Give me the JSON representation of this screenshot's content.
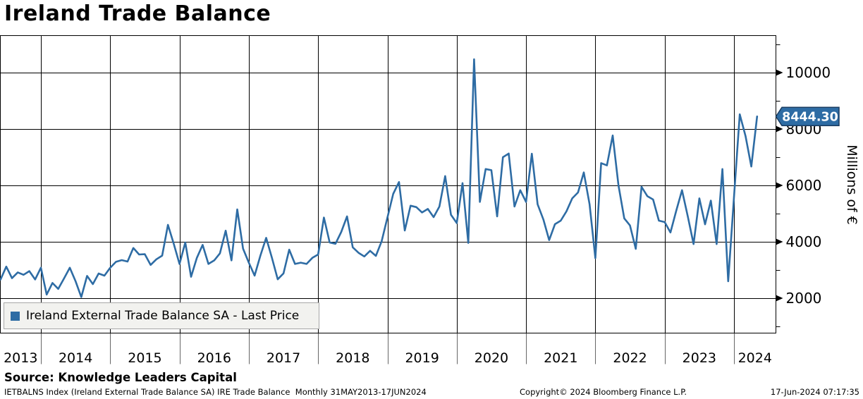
{
  "title": "Ireland Trade Balance",
  "legend": {
    "label": "Ireland External Trade Balance SA - Last Price",
    "swatch_color": "#2e6ca4"
  },
  "last_price_badge": {
    "value": "8444.30",
    "bg": "#2e6ca4",
    "border": "#1a3c61",
    "text_color": "#ffffff"
  },
  "y_axis": {
    "label": "Millions of €"
  },
  "source": "Source: Knowledge Leaders Capital",
  "footer": {
    "left": "IETBALNS Index (Ireland External Trade Balance SA) IRE Trade Balance  Monthly 31MAY2013-17JUN2024",
    "center": "Copyright© 2024 Bloomberg Finance L.P.",
    "right": "17-Jun-2024 07:17:35"
  },
  "chart_data": {
    "type": "line",
    "series_name": "Ireland External Trade Balance SA - Last Price",
    "frequency": "monthly",
    "start": "2013-05",
    "end": "2024-05",
    "unit": "Millions of €",
    "line_color": "#2e6ca4",
    "grid": true,
    "legend_position": "bottom-left-inside",
    "ylim": [
      775,
      11325
    ],
    "y_ticks": [
      2000,
      4000,
      6000,
      8000,
      10000
    ],
    "y_minor_ticks": [
      1000,
      3000,
      5000,
      7000,
      9000,
      11000
    ],
    "x_year_gridlines": [
      2014,
      2015,
      2016,
      2017,
      2018,
      2019,
      2020,
      2021,
      2022,
      2023,
      2024
    ],
    "x_year_labels": [
      "2013",
      "2014",
      "2015",
      "2016",
      "2017",
      "2018",
      "2019",
      "2020",
      "2021",
      "2022",
      "2023",
      "2024"
    ],
    "last_price": 8444.3,
    "values": [
      2700,
      2660,
      3120,
      2710,
      2915,
      2830,
      2960,
      2665,
      3080,
      2130,
      2540,
      2330,
      2700,
      3080,
      2600,
      2040,
      2790,
      2500,
      2875,
      2800,
      3080,
      3290,
      3350,
      3300,
      3780,
      3550,
      3560,
      3180,
      3380,
      3510,
      4600,
      3930,
      3215,
      3975,
      2760,
      3430,
      3890,
      3215,
      3340,
      3590,
      4395,
      3340,
      5150,
      3760,
      3260,
      2800,
      3510,
      4140,
      3430,
      2670,
      2880,
      3720,
      3215,
      3260,
      3215,
      3430,
      3550,
      4860,
      3975,
      3930,
      4350,
      4900,
      3805,
      3610,
      3480,
      3680,
      3500,
      4020,
      4860,
      5700,
      6120,
      4400,
      5280,
      5230,
      5040,
      5165,
      4875,
      5250,
      6330,
      4960,
      4665,
      6080,
      3960,
      10475,
      5415,
      6580,
      6540,
      4900,
      7000,
      7130,
      5250,
      5830,
      5415,
      7125,
      5330,
      4790,
      4060,
      4625,
      4750,
      5080,
      5540,
      5750,
      6460,
      5330,
      3420,
      6790,
      6710,
      7770,
      6000,
      4830,
      4580,
      3750,
      5950,
      5620,
      5500,
      4750,
      4700,
      4330,
      5100,
      5830,
      4900,
      3920,
      5540,
      4620,
      5460,
      3920,
      6580,
      2600,
      5580,
      8520,
      7750,
      6670,
      8444.3
    ]
  }
}
